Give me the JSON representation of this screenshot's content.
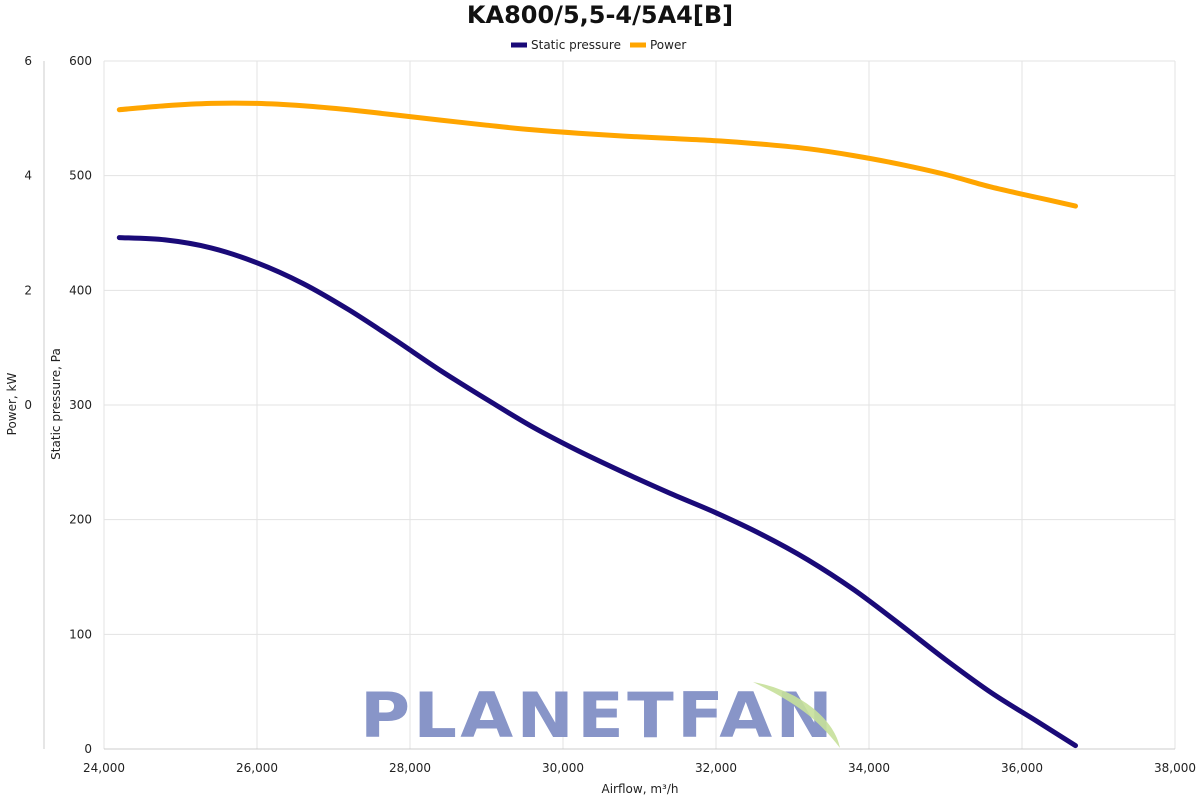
{
  "chart_data": {
    "type": "line",
    "title": "KA800/5,5-4/5A4[B]",
    "xlabel": "Airflow, m³/h",
    "ylabel_left_outer": "Power, kW",
    "ylabel_left_inner": "Static pressure, Pa",
    "xlim": [
      24000,
      38000
    ],
    "ylim_pressure": [
      0,
      600
    ],
    "ylim_power": [
      -6,
      6
    ],
    "x_ticks": [
      "24,000",
      "26,000",
      "28,000",
      "30,000",
      "32,000",
      "34,000",
      "36,000",
      "38,000"
    ],
    "pressure_ticks": [
      "0",
      "100",
      "200",
      "300",
      "400",
      "500",
      "600"
    ],
    "power_ticks": [
      "0",
      "2",
      "4",
      "6"
    ],
    "legend_position": "top-center",
    "grid": true,
    "series": [
      {
        "name": "Static pressure",
        "axis": "pressure",
        "color": "#1a0a78",
        "x": [
          24200,
          24800,
          25400,
          26000,
          26600,
          27200,
          27800,
          28400,
          29000,
          29600,
          30200,
          30800,
          31400,
          32000,
          32600,
          33200,
          33800,
          34400,
          35000,
          35600,
          36200,
          36700
        ],
        "y": [
          446,
          444,
          437,
          424,
          406,
          383,
          357,
          330,
          305,
          281,
          260,
          241,
          223,
          206,
          187,
          165,
          139,
          109,
          78,
          49,
          24,
          3
        ]
      },
      {
        "name": "Power",
        "axis": "power",
        "color": "#ffa500",
        "x": [
          24200,
          24800,
          25400,
          26000,
          26600,
          27200,
          27800,
          28400,
          29000,
          29600,
          30200,
          30800,
          31400,
          32000,
          32600,
          33200,
          33800,
          34400,
          35000,
          35600,
          36200,
          36700
        ],
        "y": [
          5.15,
          5.22,
          5.26,
          5.26,
          5.22,
          5.15,
          5.06,
          4.97,
          4.88,
          4.8,
          4.74,
          4.69,
          4.65,
          4.61,
          4.55,
          4.47,
          4.35,
          4.2,
          4.02,
          3.8,
          3.62,
          3.47
        ]
      }
    ]
  },
  "watermark": {
    "text": "PLANETFAN",
    "color": "#8895c8",
    "leaf_color": "#c7e09a"
  }
}
